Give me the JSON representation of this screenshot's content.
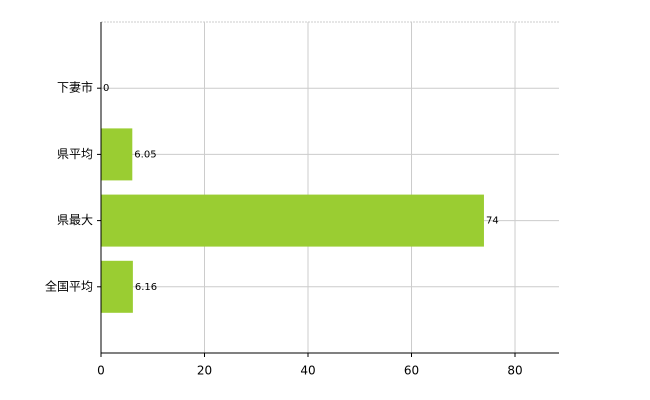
{
  "chart_data": {
    "type": "bar",
    "orientation": "horizontal",
    "categories": [
      "下妻市",
      "県平均",
      "県最大",
      "全国平均"
    ],
    "values": [
      0,
      6.05,
      74,
      6.16
    ],
    "color": "#9acd32",
    "xlim": [
      0,
      88.5
    ],
    "xticks": [
      0,
      20,
      40,
      60,
      80
    ],
    "grid": true
  }
}
